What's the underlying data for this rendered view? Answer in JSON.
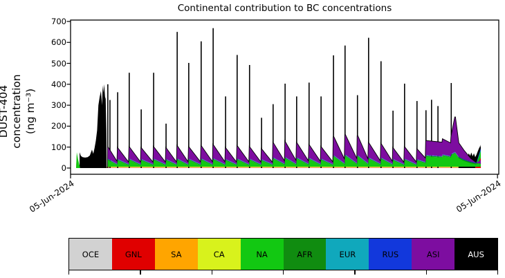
{
  "chart_data": {
    "type": "area",
    "title": "Continental contribution to BC concentrations",
    "ylabel_lines": [
      "DUST-404 concentration",
      "(ng m⁻³)"
    ],
    "ylim": [
      -30,
      700
    ],
    "yticks": [
      0,
      100,
      200,
      300,
      400,
      500,
      600,
      700
    ],
    "x_axis": {
      "tick_labels": [
        "05-Jun-2024",
        "05-Jun-2024"
      ],
      "tick_positions_pct": [
        0,
        99.7
      ]
    },
    "legend_position": "bottom",
    "grid": false,
    "series_order": [
      "OCE",
      "GNL",
      "SA",
      "CA",
      "NA",
      "AFR",
      "EUR",
      "RUS",
      "ASI",
      "AUS"
    ],
    "colors": {
      "OCE": "#d2d2d2",
      "GNL": "#e00000",
      "SA": "#ffa500",
      "CA": "#d8f21c",
      "NA": "#12c812",
      "AFR": "#108c10",
      "EUR": "#10a8bc",
      "RUS": "#1238dc",
      "ASI": "#7d0da0",
      "AUS": "#000000"
    },
    "data_x_range_pct": [
      1.3,
      95.8
    ],
    "base_strips": [
      [
        "OCE",
        1.5
      ],
      [
        "GNL",
        1.5
      ],
      [
        "SA",
        1.5
      ],
      [
        "CA",
        2
      ]
    ],
    "band_thickness": {
      "AFR": 4,
      "EUR": 1.5,
      "RUS": 1.5
    },
    "teeth": [
      [
        8.7,
        10.9,
        100,
        28,
        38,
        13
      ],
      [
        11.0,
        13.6,
        95,
        25,
        36,
        12
      ],
      [
        13.7,
        16.4,
        100,
        25,
        38,
        12
      ],
      [
        16.5,
        19.3,
        95,
        25,
        36,
        12
      ],
      [
        19.4,
        22.2,
        100,
        25,
        38,
        12
      ],
      [
        22.3,
        24.8,
        95,
        25,
        36,
        12
      ],
      [
        24.9,
        27.5,
        105,
        26,
        39,
        12
      ],
      [
        27.6,
        30.4,
        100,
        26,
        38,
        12
      ],
      [
        30.5,
        33.2,
        105,
        26,
        39,
        12
      ],
      [
        33.3,
        36.1,
        110,
        26,
        40,
        12
      ],
      [
        36.2,
        38.8,
        95,
        25,
        36,
        12
      ],
      [
        38.9,
        41.7,
        105,
        26,
        39,
        12
      ],
      [
        41.8,
        44.5,
        100,
        25,
        38,
        12
      ],
      [
        44.6,
        47.2,
        90,
        24,
        35,
        12
      ],
      [
        47.3,
        50.0,
        120,
        30,
        44,
        14
      ],
      [
        50.1,
        52.7,
        125,
        32,
        46,
        14
      ],
      [
        52.8,
        55.6,
        120,
        30,
        44,
        14
      ],
      [
        55.7,
        58.4,
        110,
        28,
        42,
        13
      ],
      [
        58.5,
        61.3,
        100,
        26,
        38,
        12
      ],
      [
        61.4,
        64.0,
        150,
        38,
        55,
        16
      ],
      [
        64.1,
        66.9,
        160,
        40,
        58,
        17
      ],
      [
        67.0,
        69.5,
        155,
        38,
        56,
        16
      ],
      [
        69.6,
        72.4,
        120,
        30,
        44,
        14
      ],
      [
        72.5,
        75.2,
        115,
        28,
        43,
        13
      ],
      [
        75.3,
        77.9,
        95,
        24,
        36,
        12
      ],
      [
        78.0,
        80.8,
        100,
        25,
        38,
        12
      ],
      [
        80.9,
        82.9,
        90,
        45,
        35,
        22
      ],
      [
        83.0,
        86.8,
        130,
        122,
        55,
        50
      ],
      [
        86.9,
        88.8,
        138,
        118,
        58,
        50
      ]
    ],
    "tail": {
      "asi": [
        [
          88.9,
          150
        ],
        [
          89.8,
          245
        ],
        [
          90.6,
          120
        ],
        [
          91.8,
          85
        ],
        [
          93.4,
          45
        ],
        [
          94.7,
          25
        ],
        [
          95.8,
          20
        ]
      ],
      "na": [
        [
          88.9,
          60
        ],
        [
          89.8,
          70
        ],
        [
          90.6,
          48
        ],
        [
          91.8,
          35
        ],
        [
          93.4,
          24
        ],
        [
          94.7,
          18
        ],
        [
          95.8,
          30
        ]
      ]
    },
    "spikes": [
      [
        8.7,
        400
      ],
      [
        9.2,
        325
      ],
      [
        11.0,
        362
      ],
      [
        13.7,
        455
      ],
      [
        16.5,
        280
      ],
      [
        19.4,
        455
      ],
      [
        22.3,
        212
      ],
      [
        24.9,
        650
      ],
      [
        27.6,
        502
      ],
      [
        30.5,
        605
      ],
      [
        33.3,
        668
      ],
      [
        36.2,
        342
      ],
      [
        38.9,
        540
      ],
      [
        41.8,
        492
      ],
      [
        44.6,
        240
      ],
      [
        47.3,
        305
      ],
      [
        50.1,
        403
      ],
      [
        52.8,
        342
      ],
      [
        55.7,
        408
      ],
      [
        58.5,
        342
      ],
      [
        61.4,
        538
      ],
      [
        64.1,
        585
      ],
      [
        67.0,
        348
      ],
      [
        69.6,
        622
      ],
      [
        72.5,
        510
      ],
      [
        75.3,
        274
      ],
      [
        78.0,
        403
      ],
      [
        80.9,
        320
      ],
      [
        83.0,
        276
      ],
      [
        84.3,
        326
      ],
      [
        85.8,
        296
      ],
      [
        88.9,
        406
      ]
    ],
    "start_mass": [
      [
        2.1,
        0
      ],
      [
        2.1,
        75
      ],
      [
        2.4,
        58
      ],
      [
        2.8,
        52
      ],
      [
        3.4,
        50
      ],
      [
        4.0,
        52
      ],
      [
        4.5,
        60
      ],
      [
        5.0,
        88
      ],
      [
        5.3,
        68
      ],
      [
        5.6,
        95
      ],
      [
        5.9,
        130
      ],
      [
        6.2,
        180
      ],
      [
        6.5,
        300
      ],
      [
        6.8,
        340
      ],
      [
        7.1,
        368
      ],
      [
        7.35,
        300
      ],
      [
        7.5,
        395
      ],
      [
        7.65,
        360
      ],
      [
        7.85,
        400
      ],
      [
        8.05,
        340
      ],
      [
        8.2,
        330
      ],
      [
        8.35,
        180
      ],
      [
        8.45,
        0
      ]
    ],
    "end_mass": [
      [
        90.6,
        0
      ],
      [
        90.6,
        115
      ],
      [
        90.9,
        95
      ],
      [
        91.2,
        70
      ],
      [
        91.5,
        62
      ],
      [
        91.8,
        72
      ],
      [
        92.1,
        58
      ],
      [
        92.4,
        66
      ],
      [
        92.7,
        55
      ],
      [
        93.0,
        70
      ],
      [
        93.3,
        58
      ],
      [
        93.6,
        74
      ],
      [
        93.9,
        56
      ],
      [
        94.2,
        70
      ],
      [
        94.5,
        52
      ],
      [
        94.8,
        64
      ],
      [
        95.1,
        80
      ],
      [
        95.4,
        95
      ],
      [
        95.6,
        105
      ],
      [
        95.8,
        0
      ]
    ],
    "start_wedge": {
      "na": [
        [
          1.3,
          5
        ],
        [
          1.45,
          75
        ],
        [
          1.75,
          42
        ],
        [
          2.05,
          15
        ],
        [
          2.2,
          5
        ]
      ],
      "gnl": [
        [
          1.3,
          3
        ],
        [
          1.45,
          58
        ],
        [
          1.75,
          26
        ],
        [
          2.05,
          8
        ],
        [
          2.2,
          2
        ]
      ]
    },
    "end_wedge": {
      "aus": [
        [
          94.5,
          8
        ],
        [
          95.8,
          112
        ]
      ],
      "rus": [
        [
          94.5,
          6
        ],
        [
          95.8,
          94
        ]
      ],
      "eur": [
        [
          94.5,
          5
        ],
        [
          95.8,
          88
        ]
      ],
      "na": [
        [
          94.5,
          4
        ],
        [
          95.8,
          80
        ]
      ],
      "gnl": [
        [
          94.5,
          2
        ],
        [
          95.8,
          48
        ]
      ]
    }
  },
  "legend": {
    "items": [
      {
        "label": "OCE",
        "color": "#d2d2d2",
        "text_color": "#000000"
      },
      {
        "label": "GNL",
        "color": "#e00000",
        "text_color": "#000000"
      },
      {
        "label": "SA",
        "color": "#ffa500",
        "text_color": "#000000"
      },
      {
        "label": "CA",
        "color": "#d8f21c",
        "text_color": "#000000"
      },
      {
        "label": "NA",
        "color": "#12c812",
        "text_color": "#000000"
      },
      {
        "label": "AFR",
        "color": "#108c10",
        "text_color": "#000000"
      },
      {
        "label": "EUR",
        "color": "#10a8bc",
        "text_color": "#000000"
      },
      {
        "label": "RUS",
        "color": "#1238dc",
        "text_color": "#000000"
      },
      {
        "label": "ASI",
        "color": "#7d0da0",
        "text_color": "#000000"
      },
      {
        "label": "AUS",
        "color": "#000000",
        "text_color": "#ffffff"
      }
    ],
    "n_axis_ticks": 7
  }
}
